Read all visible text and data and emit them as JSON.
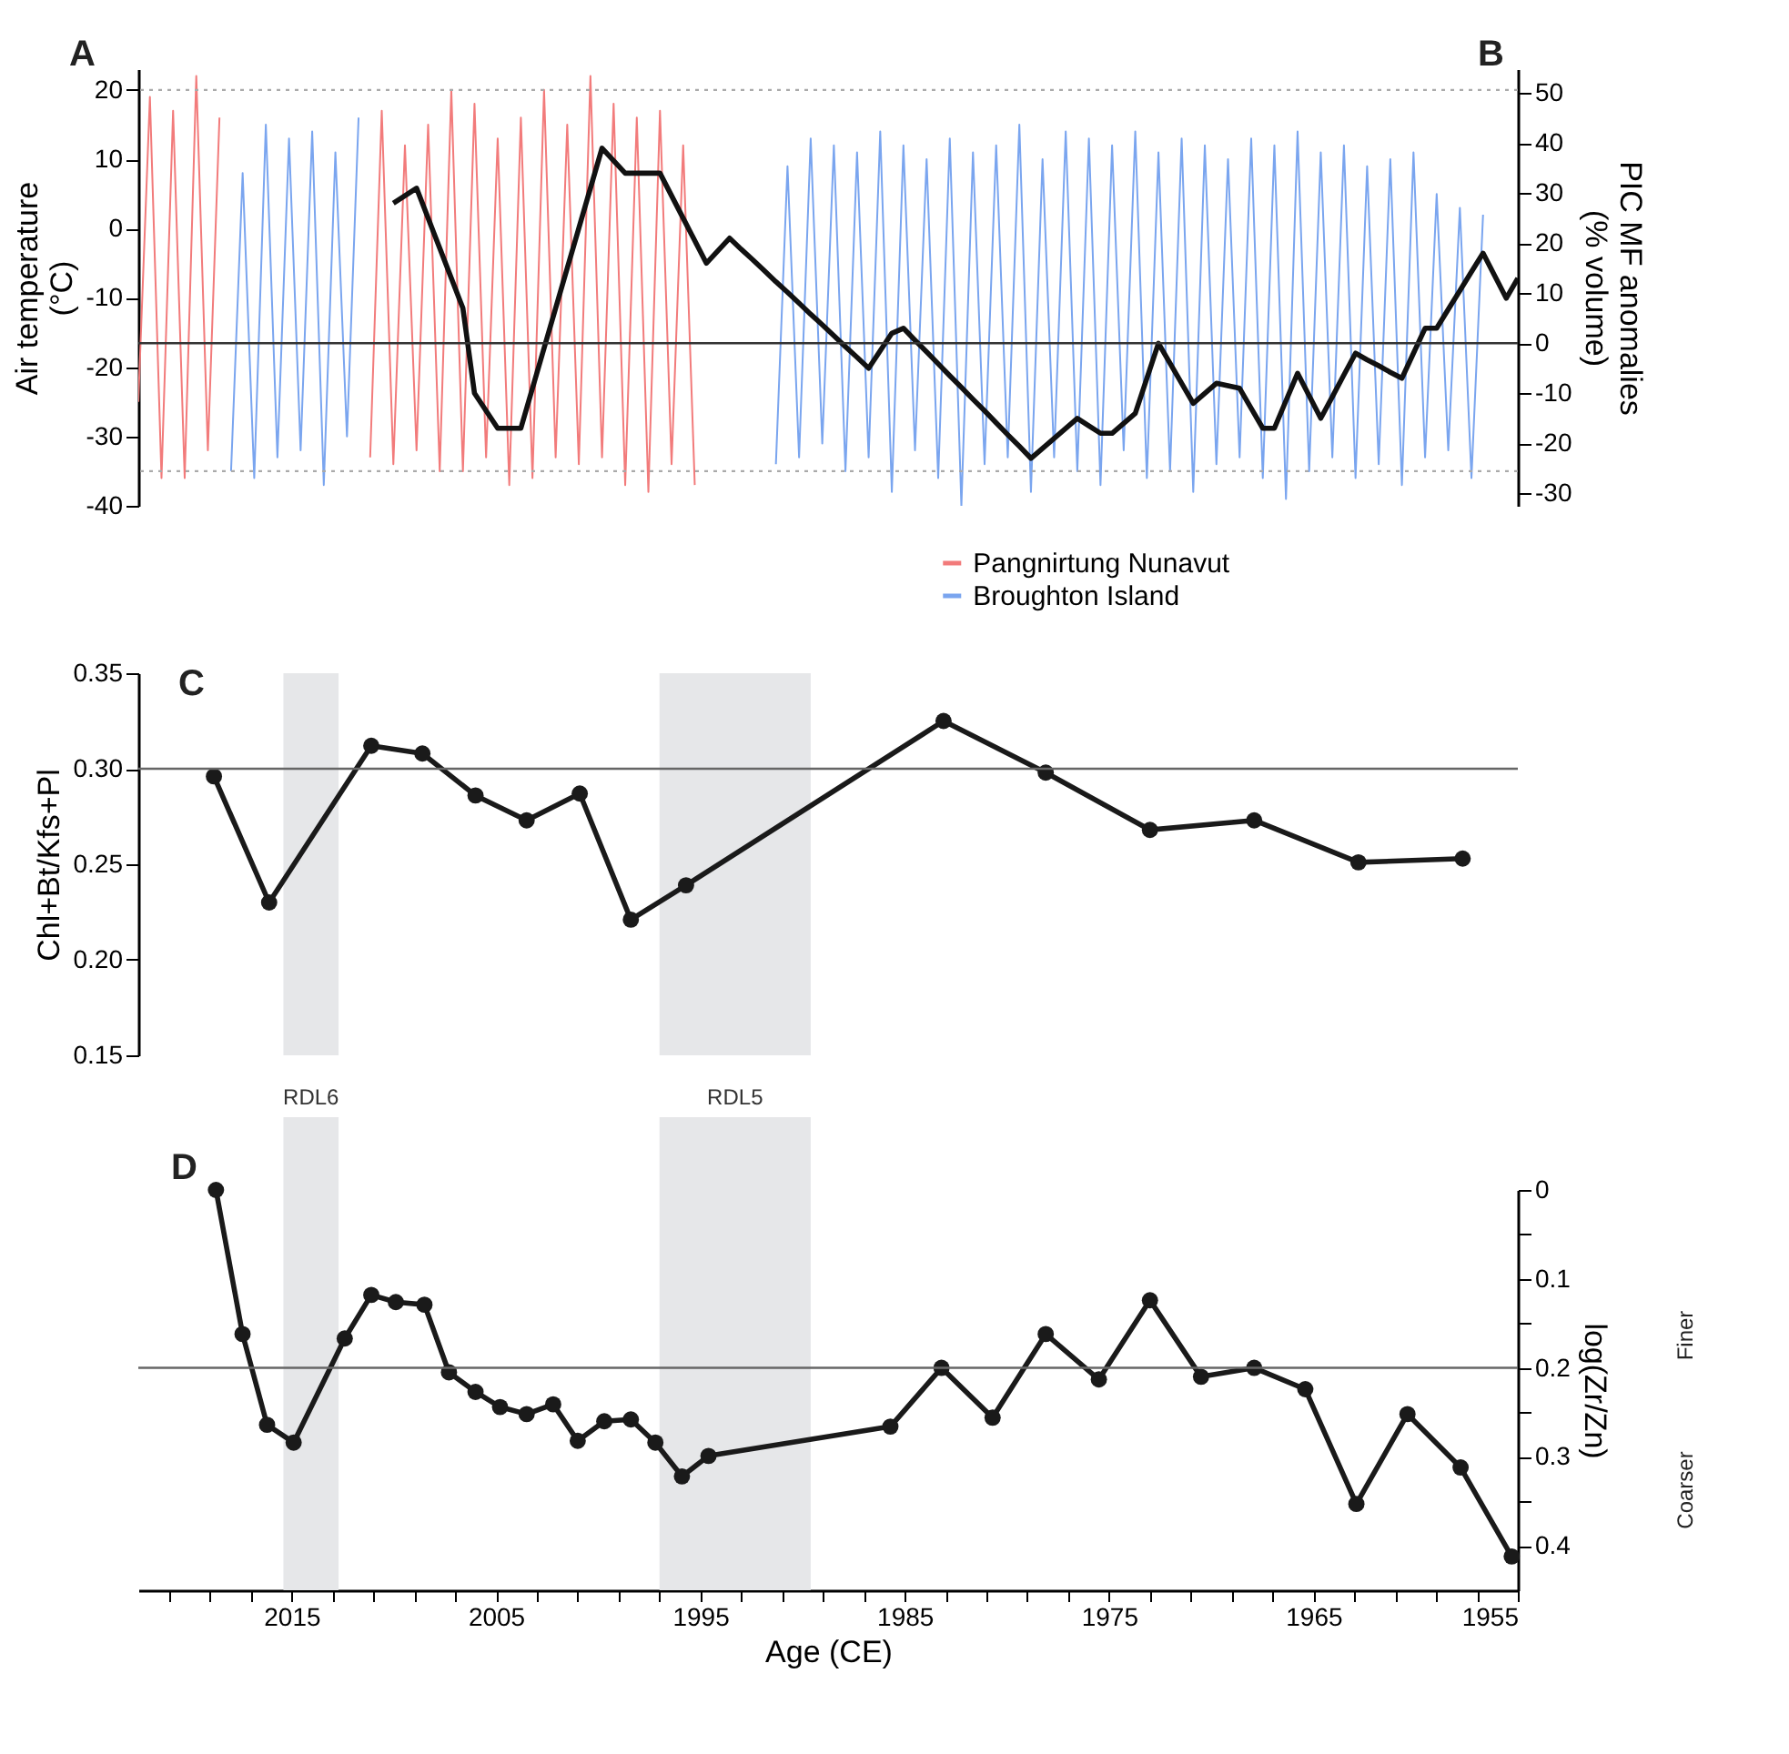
{
  "chart_data": [
    {
      "type": "line",
      "categories": [
        null,
        null,
        null,
        null,
        null,
        null,
        null,
        null,
        null,
        null,
        null,
        null,
        null,
        null,
        null,
        null,
        null,
        null,
        null,
        null,
        null,
        null,
        null,
        null,
        null,
        null,
        null,
        null,
        null,
        null,
        null,
        null,
        null,
        null,
        null,
        null,
        null,
        null,
        null,
        null,
        null,
        null,
        null,
        null,
        null,
        null,
        null,
        null,
        null,
        null,
        null,
        null,
        null,
        null,
        null,
        null,
        null,
        null,
        null,
        null,
        null,
        null,
        null,
        null,
        null,
        null,
        null,
        null,
        null,
        null,
        null,
        null,
        null,
        null,
        null,
        null,
        null,
        null,
        null,
        null,
        null,
        null,
        null,
        null,
        null,
        null,
        null,
        null,
        null,
        null,
        null,
        null,
        null,
        null,
        null,
        null,
        null,
        null,
        null,
        null,
        null,
        null,
        null,
        null,
        null,
        null,
        null,
        null,
        null,
        null,
        null,
        null,
        null,
        null,
        null,
        null,
        null,
        null,
        null,
        null
      ],
      "ylabel": "Air temperature (°C)",
      "y2label": "PIC MF anomalies (% volume)",
      "ylim": [
        -40,
        23
      ],
      "yticks": [
        -40,
        -30,
        -20,
        -10,
        0,
        10,
        20
      ],
      "y2lim": [
        -32.5,
        54.8
      ],
      "y2ticks": [
        -30,
        -20,
        -10,
        0,
        10,
        20,
        30,
        40,
        50
      ],
      "series": [
        {
          "name": "Pangnirtung Nunavut",
          "color": "#f27b7b",
          "values": [
            -25,
            19,
            -36,
            17,
            -36,
            22,
            -32,
            16,
            null,
            null,
            null,
            null,
            null,
            null,
            null,
            null,
            null,
            null,
            null,
            null,
            null,
            null,
            null,
            null,
            null,
            null,
            null,
            null,
            null,
            null,
            null,
            null,
            null,
            null,
            null,
            null,
            null,
            null,
            null,
            null,
            null,
            null,
            null,
            null,
            null,
            null,
            null,
            null,
            null,
            null,
            null,
            null,
            null,
            null,
            null,
            null,
            null,
            null,
            null,
            null,
            null,
            null,
            null,
            null,
            null,
            null,
            null,
            null,
            null,
            null,
            null,
            null,
            null,
            null,
            null,
            null,
            null,
            null,
            null,
            null,
            null,
            null,
            null,
            null,
            null,
            null,
            null,
            null,
            null,
            null,
            null,
            null,
            null,
            null,
            null,
            null,
            null,
            null,
            null,
            null,
            null,
            null,
            null,
            null,
            null,
            null,
            null,
            null,
            null,
            null,
            null,
            null,
            null,
            null,
            null,
            null,
            null,
            null,
            null,
            null
          ]
        },
        {
          "name": "Broughton Island",
          "color": "#7aa5ef",
          "values": [
            null,
            null,
            null,
            null,
            null,
            null,
            null,
            null,
            -35,
            8,
            -36,
            15,
            -33,
            13,
            -32,
            14,
            -37,
            11,
            -30,
            16,
            null,
            null,
            null,
            null,
            null,
            null,
            null,
            null,
            null,
            null,
            null,
            null,
            null,
            null,
            null,
            null,
            null,
            null,
            null,
            null,
            null,
            null,
            null,
            null,
            null,
            null,
            null,
            null,
            null,
            null,
            null,
            null,
            null,
            null,
            null,
            null,
            null,
            null,
            null,
            null,
            null,
            null,
            null,
            null,
            null,
            null,
            null,
            null,
            null,
            null,
            null,
            null,
            null,
            null,
            null,
            null,
            null,
            null,
            null,
            null,
            null,
            null,
            null,
            null,
            null,
            null,
            null,
            null,
            null,
            null,
            null,
            null,
            null,
            null,
            null,
            null,
            null,
            null,
            null,
            null,
            null,
            null,
            null,
            null,
            null,
            null,
            null,
            null,
            null,
            null,
            null,
            null,
            null,
            null,
            null,
            null,
            null,
            null,
            null,
            null
          ]
        },
        {
          "color": "#f27b7b",
          "values": [
            null,
            null,
            null,
            null,
            null,
            null,
            null,
            null,
            null,
            null,
            null,
            null,
            null,
            null,
            null,
            null,
            null,
            null,
            null,
            null,
            -33,
            17,
            -34,
            12,
            -32,
            15,
            -35,
            20,
            -35,
            18,
            -33,
            13,
            -37,
            16,
            -36,
            20,
            -33,
            15,
            -34,
            22,
            -33,
            18,
            -37,
            16,
            -38,
            17,
            -34,
            12,
            -37,
            null,
            null,
            null,
            null,
            null,
            null,
            null,
            null,
            null,
            null,
            null,
            null,
            null,
            null,
            null,
            null,
            null,
            null,
            null,
            null,
            null,
            null,
            null,
            null,
            null,
            null,
            null,
            null,
            null,
            null,
            null,
            null,
            null,
            null,
            null,
            null,
            null,
            null,
            null,
            null,
            null,
            null,
            null,
            null,
            null,
            null,
            null,
            null,
            null,
            null,
            null,
            null,
            null,
            null,
            null,
            null,
            null,
            null,
            null,
            null,
            null,
            null,
            null,
            null,
            null,
            null,
            null,
            null,
            null,
            null,
            null
          ]
        },
        {
          "color": "#7aa5ef",
          "values": [
            null,
            null,
            null,
            null,
            null,
            null,
            null,
            null,
            null,
            null,
            null,
            null,
            null,
            null,
            null,
            null,
            null,
            null,
            null,
            null,
            null,
            null,
            null,
            null,
            null,
            null,
            null,
            null,
            null,
            null,
            null,
            null,
            null,
            null,
            null,
            null,
            null,
            null,
            null,
            null,
            null,
            null,
            null,
            null,
            null,
            null,
            null,
            null,
            null,
            null,
            null,
            null,
            null,
            null,
            null,
            -34,
            9,
            -33,
            13,
            -31,
            12,
            -35,
            11,
            -33,
            14,
            -38,
            12,
            -32,
            10,
            -36,
            13,
            -40,
            11,
            -34,
            12,
            -33,
            15,
            -38,
            10,
            -33,
            14,
            -35,
            13,
            -37,
            12,
            -32,
            14,
            -36,
            11,
            -35,
            13,
            -38,
            12,
            -34,
            10,
            -33,
            13,
            -36,
            12,
            -39,
            14,
            -35,
            11,
            -33,
            12,
            -36,
            9,
            -34,
            10,
            -37,
            11,
            -33,
            5,
            -32,
            3,
            -36,
            2,
            null,
            null,
            null
          ]
        },
        {
          "color": "#111111",
          "axis": "y2",
          "values": [
            null,
            null,
            null,
            null,
            null,
            null,
            null,
            null,
            null,
            null,
            null,
            null,
            null,
            null,
            null,
            null,
            null,
            null,
            null,
            null,
            null,
            null,
            28,
            29.5,
            31,
            25,
            19,
            13,
            7,
            -10,
            -13.5,
            -17,
            -17,
            -17,
            -9,
            -1,
            7,
            15,
            23,
            31,
            39,
            36.5,
            34,
            34,
            34,
            34,
            29.5,
            25,
            20.5,
            16,
            18.5,
            21,
            18.8,
            16.7,
            14.5,
            12.3,
            10.2,
            8,
            5.8,
            3.7,
            1.5,
            -0.7,
            -2.8,
            -5,
            -1.5,
            2,
            3,
            0.6,
            -1.7,
            -4.1,
            -6.5,
            -8.8,
            -11.2,
            -13.5,
            -15.9,
            -18.3,
            -20.6,
            -23,
            -21,
            -19,
            -17,
            -15,
            -16.5,
            -18,
            -18,
            -16,
            -14,
            -7,
            0,
            -4,
            -8,
            -12,
            -10,
            -8,
            -8.5,
            -9,
            -13,
            -17,
            -17,
            -11.5,
            -6,
            -10.5,
            -15,
            -10.7,
            -6.3,
            -2,
            -3.3,
            -4.5,
            -5.8,
            -7,
            -2,
            3,
            3,
            6.8,
            10.5,
            14.3,
            18,
            13.5,
            9,
            13
          ]
        }
      ],
      "ref_lines": [
        {
          "axis": "y2",
          "value": 0,
          "color": "#333333",
          "line_style": "solid"
        },
        {
          "axis": "y",
          "value": 20,
          "color": "#aaaaaa",
          "line_style": "dotted"
        },
        {
          "axis": "y",
          "value": -35,
          "color": "#aaaaaa",
          "line_style": "dotted"
        }
      ],
      "legend": "bottom right",
      "marker": "none",
      "grid": false,
      "annotations": [
        "A",
        "B"
      ]
    },
    {
      "type": "line",
      "x": [
        2018.8,
        2016.1,
        2011.1,
        2008.6,
        2006.0,
        2003.5,
        2000.9,
        1998.4,
        1995.7,
        1983.1,
        1978.1,
        1973.0,
        1967.9,
        1962.8,
        1957.7
      ],
      "xlim": [
        2022.5,
        1955
      ],
      "ylabel": "Chl+Bt/Kfs+Pl",
      "ylim": [
        0.15,
        0.35
      ],
      "yticks": [
        0.15,
        {
          "value": 0.2,
          "label": "0.20"
        },
        0.25,
        {
          "value": 0.3,
          "label": "0.30"
        },
        0.35
      ],
      "series": [
        {
          "color": "#1a1a1a",
          "values": [
            0.296,
            0.23,
            0.312,
            0.308,
            0.286,
            0.273,
            0.287,
            0.221,
            0.239,
            0.325,
            0.298,
            0.268,
            0.273,
            0.251,
            0.253
          ]
        }
      ],
      "ref_lines": [
        {
          "axis": "y",
          "value": 0.3,
          "color": "#666666",
          "line_style": "solid"
        }
      ],
      "bands": [
        {
          "axis": "x",
          "from": 2015.4,
          "to": 2012.7,
          "color": "#e6e7e9"
        },
        {
          "axis": "x",
          "from": 1997.0,
          "to": 1989.6,
          "color": "#e6e7e9"
        }
      ],
      "tick_labels": "y",
      "marker": "circle",
      "grid": false,
      "annotations": [
        "C"
      ]
    },
    {
      "type": "line",
      "x": [
        2018.7,
        2017.4,
        2016.2,
        2014.9,
        2012.4,
        2011.1,
        2009.9,
        2008.5,
        2007.3,
        2006.0,
        2004.8,
        2003.5,
        2002.2,
        2001.0,
        1999.7,
        1998.4,
        1997.2,
        1995.9,
        1994.6,
        1985.7,
        1983.2,
        1980.7,
        1978.1,
        1975.5,
        1973.0,
        1970.5,
        1967.9,
        1965.4,
        1962.9,
        1960.4,
        1957.8,
        1955.3
      ],
      "xlim": [
        2022.5,
        1955
      ],
      "xlabel": "Age (CE)",
      "xticks": [
        {
          "value": 2021,
          "label": null
        },
        {
          "value": 2019,
          "label": null
        },
        {
          "value": 2017,
          "label": null
        },
        2015,
        {
          "value": 2013,
          "label": null
        },
        {
          "value": 2011,
          "label": null
        },
        {
          "value": 2009,
          "label": null
        },
        {
          "value": 2007,
          "label": null
        },
        2005,
        {
          "value": 2003,
          "label": null
        },
        {
          "value": 2001,
          "label": null
        },
        {
          "value": 1999,
          "label": null
        },
        {
          "value": 1997,
          "label": null
        },
        1995,
        {
          "value": 1993,
          "label": null
        },
        {
          "value": 1991,
          "label": null
        },
        {
          "value": 1989,
          "label": null
        },
        {
          "value": 1987,
          "label": null
        },
        1985,
        {
          "value": 1983,
          "label": null
        },
        {
          "value": 1981,
          "label": null
        },
        {
          "value": 1979,
          "label": null
        },
        {
          "value": 1977,
          "label": null
        },
        1975,
        {
          "value": 1973,
          "label": null
        },
        {
          "value": 1971,
          "label": null
        },
        {
          "value": 1969,
          "label": null
        },
        {
          "value": 1967,
          "label": null
        },
        1965,
        {
          "value": 1963,
          "label": null
        },
        {
          "value": 1961,
          "label": null
        },
        {
          "value": 1959,
          "label": null
        },
        {
          "value": 1957,
          "label": null
        },
        1955
      ],
      "y2label": "log(Zr/Zn)",
      "y2lim": [
        0.45,
        0
      ],
      "y2ticks": [
        0,
        {
          "value": 0.05,
          "label": null
        },
        0.1,
        {
          "value": 0.15,
          "label": null
        },
        0.2,
        {
          "value": 0.25,
          "label": null
        },
        0.3,
        {
          "value": 0.35,
          "label": null
        },
        0.4
      ],
      "series": [
        {
          "color": "#1a1a1a",
          "axis": "y2",
          "values": [
            0.0,
            0.162,
            0.264,
            0.284,
            0.167,
            0.118,
            0.126,
            0.129,
            0.205,
            0.227,
            0.244,
            0.252,
            0.241,
            0.282,
            0.26,
            0.258,
            0.284,
            0.322,
            0.299,
            0.266,
            0.2,
            0.256,
            0.162,
            0.213,
            0.124,
            0.21,
            0.2,
            0.224,
            0.353,
            0.252,
            0.312,
            0.412
          ]
        }
      ],
      "ref_lines": [
        {
          "axis": "y2",
          "value": 0.2,
          "color": "#666666",
          "line_style": "solid"
        }
      ],
      "bands": [
        {
          "axis": "x",
          "from": 2015.4,
          "to": 2012.7,
          "label": "RDL6",
          "color": "#e6e7e9"
        },
        {
          "axis": "x",
          "from": 1997.0,
          "to": 1989.6,
          "label": "RDL5",
          "color": "#e6e7e9"
        }
      ],
      "marker": "circle",
      "grid": false,
      "annotations": [
        "D",
        "Finer",
        "Coarser"
      ]
    }
  ]
}
